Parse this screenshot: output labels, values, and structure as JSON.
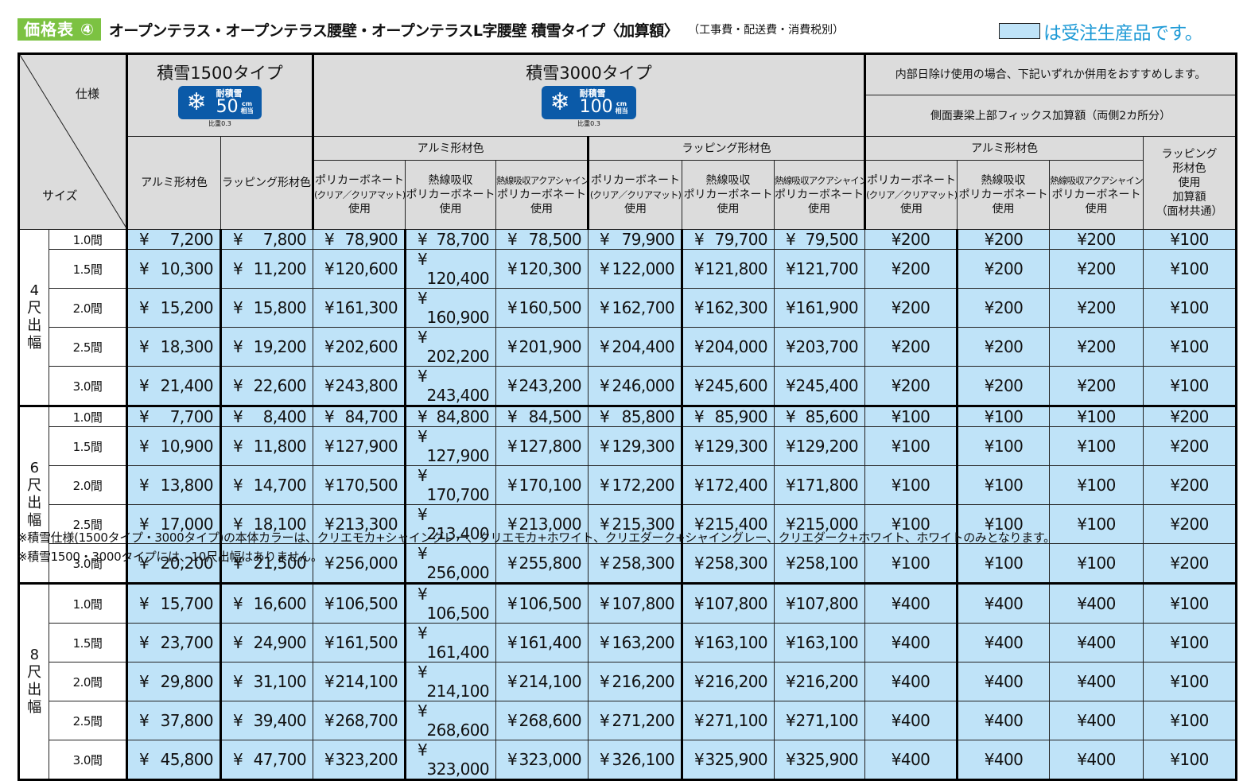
{
  "header": {
    "badge": "価格表 ④",
    "title": "オープンテラス・オープンテラス腰壁・オープンテラスL字腰壁 積雪タイプ〈加算額〉",
    "subtitle": "（工事費・配送費・消費税別）",
    "legend_text": "は受注生産品です。",
    "legend_color": "#bfe3f8",
    "badge_color": "#7cc242",
    "legend_text_color": "#1e9ad6"
  },
  "table": {
    "corner": {
      "spec_label": "仕様",
      "size_label": "サイズ"
    },
    "type1500": {
      "title": "積雪1500タイプ",
      "badge_label": "耐積雪",
      "badge_value": "50",
      "badge_unit_top": "cm",
      "badge_unit_bottom": "相当",
      "ratio": "比重0.3",
      "cols": [
        "アルミ形材色",
        "ラッピング形材色"
      ]
    },
    "type3000": {
      "title": "積雪3000タイプ",
      "badge_label": "耐積雪",
      "badge_value": "100",
      "badge_unit_top": "cm",
      "badge_unit_bottom": "相当",
      "ratio": "比重0.3",
      "groups": [
        "アルミ形材色",
        "ラッピング形材色"
      ],
      "panels": [
        {
          "l1": "ポリカーボネート",
          "l2": "(クリア／クリアマット)",
          "l3": "使用"
        },
        {
          "l1": "熱線吸収",
          "l2": "ポリカーボネート",
          "l3": "使用"
        },
        {
          "l1": "熱線吸収アクアシャイン",
          "l2": "ポリカーボネート",
          "l3": "使用"
        }
      ]
    },
    "fix": {
      "note": "内部日除け使用の場合、下記いずれか併用をおすすめします。",
      "title": "側面妻梁上部フィックス加算額（両側2カ所分）",
      "group": "アルミ形材色",
      "wrap_l1": "ラッピング",
      "wrap_l2": "形材色",
      "wrap_l3": "使用",
      "wrap_l4": "加算額",
      "wrap_l5": "（面材共通）"
    },
    "groups": [
      {
        "label": [
          "4",
          "尺",
          "出",
          "幅"
        ],
        "rows": [
          {
            "size": "1.0間",
            "v": [
              "7,200",
              "7,800",
              "78,900",
              "78,700",
              "78,500",
              "79,900",
              "79,700",
              "79,500",
              "200",
              "200",
              "200",
              "100"
            ]
          },
          {
            "size": "1.5間",
            "v": [
              "10,300",
              "11,200",
              "120,600",
              "120,400",
              "120,300",
              "122,000",
              "121,800",
              "121,700",
              "200",
              "200",
              "200",
              "100"
            ]
          },
          {
            "size": "2.0間",
            "v": [
              "15,200",
              "15,800",
              "161,300",
              "160,900",
              "160,500",
              "162,700",
              "162,300",
              "161,900",
              "200",
              "200",
              "200",
              "100"
            ]
          },
          {
            "size": "2.5間",
            "v": [
              "18,300",
              "19,200",
              "202,600",
              "202,200",
              "201,900",
              "204,400",
              "204,000",
              "203,700",
              "200",
              "200",
              "200",
              "100"
            ]
          },
          {
            "size": "3.0間",
            "v": [
              "21,400",
              "22,600",
              "243,800",
              "243,400",
              "243,200",
              "246,000",
              "245,600",
              "245,400",
              "200",
              "200",
              "200",
              "100"
            ]
          }
        ]
      },
      {
        "label": [
          "6",
          "尺",
          "出",
          "幅"
        ],
        "rows": [
          {
            "size": "1.0間",
            "v": [
              "7,700",
              "8,400",
              "84,700",
              "84,800",
              "84,500",
              "85,800",
              "85,900",
              "85,600",
              "100",
              "100",
              "100",
              "200"
            ]
          },
          {
            "size": "1.5間",
            "v": [
              "10,900",
              "11,800",
              "127,900",
              "127,900",
              "127,800",
              "129,300",
              "129,300",
              "129,200",
              "100",
              "100",
              "100",
              "200"
            ]
          },
          {
            "size": "2.0間",
            "v": [
              "13,800",
              "14,700",
              "170,500",
              "170,700",
              "170,100",
              "172,200",
              "172,400",
              "171,800",
              "100",
              "100",
              "100",
              "200"
            ]
          },
          {
            "size": "2.5間",
            "v": [
              "17,000",
              "18,100",
              "213,300",
              "213,400",
              "213,000",
              "215,300",
              "215,400",
              "215,000",
              "100",
              "100",
              "100",
              "200"
            ]
          },
          {
            "size": "3.0間",
            "v": [
              "20,200",
              "21,500",
              "256,000",
              "256,000",
              "255,800",
              "258,300",
              "258,300",
              "258,100",
              "100",
              "100",
              "100",
              "200"
            ]
          }
        ]
      },
      {
        "label": [
          "8",
          "尺",
          "出",
          "幅"
        ],
        "rows": [
          {
            "size": "1.0間",
            "v": [
              "15,700",
              "16,600",
              "106,500",
              "106,500",
              "106,500",
              "107,800",
              "107,800",
              "107,800",
              "400",
              "400",
              "400",
              "100"
            ]
          },
          {
            "size": "1.5間",
            "v": [
              "23,700",
              "24,900",
              "161,500",
              "161,400",
              "161,400",
              "163,200",
              "163,100",
              "163,100",
              "400",
              "400",
              "400",
              "100"
            ]
          },
          {
            "size": "2.0間",
            "v": [
              "29,800",
              "31,100",
              "214,100",
              "214,100",
              "214,100",
              "216,200",
              "216,200",
              "216,200",
              "400",
              "400",
              "400",
              "100"
            ]
          },
          {
            "size": "2.5間",
            "v": [
              "37,800",
              "39,400",
              "268,700",
              "268,600",
              "268,600",
              "271,200",
              "271,100",
              "271,100",
              "400",
              "400",
              "400",
              "100"
            ]
          },
          {
            "size": "3.0間",
            "v": [
              "45,800",
              "47,700",
              "323,200",
              "323,000",
              "323,000",
              "326,100",
              "325,900",
              "325,900",
              "400",
              "400",
              "400",
              "100"
            ]
          }
        ]
      }
    ],
    "currency": "¥"
  },
  "notes": [
    "※積雪仕様(1500タイプ・3000タイプ)の本体カラーは、クリエモカ+シャイングレー、クリエモカ+ホワイト、クリエダーク+シャイングレー、クリエダーク+ホワイト、ホワイトのみとなります。",
    "※積雪1500・3000タイプには、10尺出幅はありません。"
  ]
}
